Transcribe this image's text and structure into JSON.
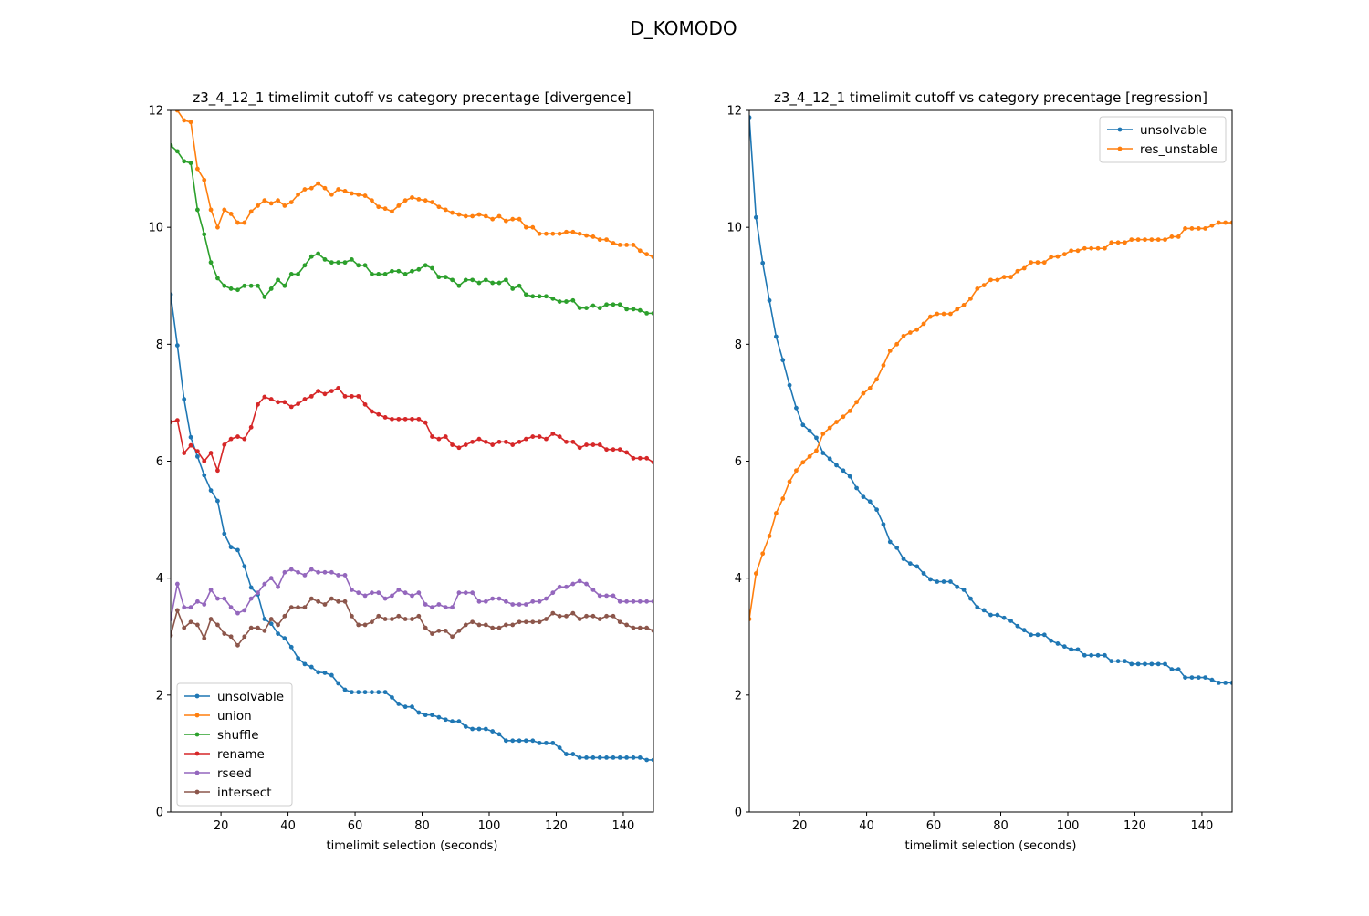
{
  "figure": {
    "suptitle": "D_KOMODO",
    "colors": {
      "unsolvable": "#1f77b4",
      "union": "#ff7f0e",
      "shuffle": "#2ca02c",
      "rename": "#d62728",
      "rseed": "#9467bd",
      "intersect": "#8c564b",
      "res_unstable": "#ff7f0e"
    }
  },
  "chart_data": [
    {
      "type": "line",
      "title": "z3_4_12_1 timelimit cutoff vs category precentage [divergence]",
      "xlabel": "timelimit selection (seconds)",
      "ylabel": "",
      "xlim": [
        5,
        149
      ],
      "ylim": [
        0,
        12
      ],
      "xticks": [
        20,
        40,
        60,
        80,
        100,
        120,
        140
      ],
      "yticks": [
        0,
        2,
        4,
        6,
        8,
        10,
        12
      ],
      "legend": "lower-left",
      "grid": false,
      "marker": "dot",
      "x": {
        "start": 5,
        "step": 2,
        "count": 73
      },
      "series": [
        {
          "name": "unsolvable",
          "color": "#1f77b4",
          "values": [
            8.85,
            7.98,
            7.06,
            6.41,
            6.08,
            5.76,
            5.5,
            5.32,
            4.76,
            4.53,
            4.48,
            4.2,
            3.84,
            3.72,
            3.3,
            3.22,
            3.05,
            2.97,
            2.82,
            2.63,
            2.53,
            2.48,
            2.39,
            2.38,
            2.34,
            2.2,
            2.09,
            2.05,
            2.05,
            2.05,
            2.05,
            2.05,
            2.05,
            1.96,
            1.85,
            1.8,
            1.8,
            1.7,
            1.66,
            1.66,
            1.62,
            1.58,
            1.55,
            1.55,
            1.46,
            1.42,
            1.42,
            1.42,
            1.38,
            1.33,
            1.22,
            1.22,
            1.22,
            1.22,
            1.22,
            1.18,
            1.18,
            1.18,
            1.1,
            0.99,
            0.99,
            0.93,
            0.93,
            0.93,
            0.93,
            0.93,
            0.93,
            0.93,
            0.93,
            0.93,
            0.93,
            0.89,
            0.89
          ]
        },
        {
          "name": "union",
          "color": "#ff7f0e",
          "values": [
            12.35,
            12.0,
            11.83,
            11.8,
            11.0,
            10.81,
            10.3,
            10.0,
            10.3,
            10.23,
            10.08,
            10.08,
            10.27,
            10.37,
            10.46,
            10.41,
            10.46,
            10.37,
            10.43,
            10.56,
            10.65,
            10.67,
            10.75,
            10.67,
            10.56,
            10.65,
            10.62,
            10.58,
            10.56,
            10.54,
            10.46,
            10.35,
            10.32,
            10.27,
            10.37,
            10.46,
            10.51,
            10.48,
            10.46,
            10.43,
            10.35,
            10.3,
            10.25,
            10.22,
            10.19,
            10.19,
            10.22,
            10.19,
            10.14,
            10.19,
            10.11,
            10.14,
            10.14,
            10.0,
            10.0,
            9.89,
            9.89,
            9.89,
            9.89,
            9.92,
            9.92,
            9.89,
            9.86,
            9.84,
            9.79,
            9.79,
            9.73,
            9.7,
            9.7,
            9.7,
            9.6,
            9.54,
            9.49
          ]
        },
        {
          "name": "shuffle",
          "color": "#2ca02c",
          "values": [
            11.4,
            11.3,
            11.13,
            11.1,
            10.3,
            9.88,
            9.4,
            9.13,
            9.0,
            8.95,
            8.93,
            9.0,
            9.0,
            9.0,
            8.81,
            8.95,
            9.1,
            9.0,
            9.2,
            9.2,
            9.35,
            9.5,
            9.55,
            9.45,
            9.4,
            9.4,
            9.4,
            9.45,
            9.35,
            9.35,
            9.2,
            9.2,
            9.2,
            9.25,
            9.25,
            9.2,
            9.25,
            9.28,
            9.35,
            9.3,
            9.15,
            9.15,
            9.1,
            9.0,
            9.1,
            9.1,
            9.05,
            9.1,
            9.05,
            9.05,
            9.1,
            8.95,
            9.0,
            8.85,
            8.82,
            8.82,
            8.82,
            8.78,
            8.73,
            8.73,
            8.75,
            8.62,
            8.62,
            8.66,
            8.62,
            8.68,
            8.68,
            8.68,
            8.6,
            8.6,
            8.58,
            8.53,
            8.53
          ]
        },
        {
          "name": "rename",
          "color": "#d62728",
          "values": [
            6.67,
            6.7,
            6.14,
            6.27,
            6.17,
            6.0,
            6.14,
            5.84,
            6.28,
            6.38,
            6.42,
            6.38,
            6.58,
            6.97,
            7.1,
            7.06,
            7.01,
            7.01,
            6.93,
            6.98,
            7.06,
            7.11,
            7.2,
            7.15,
            7.2,
            7.25,
            7.11,
            7.11,
            7.11,
            6.97,
            6.85,
            6.8,
            6.75,
            6.72,
            6.72,
            6.72,
            6.72,
            6.72,
            6.66,
            6.42,
            6.38,
            6.42,
            6.28,
            6.23,
            6.28,
            6.33,
            6.38,
            6.33,
            6.28,
            6.33,
            6.33,
            6.28,
            6.33,
            6.38,
            6.42,
            6.42,
            6.38,
            6.47,
            6.42,
            6.33,
            6.33,
            6.23,
            6.28,
            6.28,
            6.28,
            6.2,
            6.2,
            6.2,
            6.15,
            6.05,
            6.05,
            6.05,
            5.98
          ]
        },
        {
          "name": "rseed",
          "color": "#9467bd",
          "values": [
            3.3,
            3.9,
            3.5,
            3.5,
            3.6,
            3.55,
            3.8,
            3.65,
            3.65,
            3.5,
            3.4,
            3.45,
            3.65,
            3.75,
            3.9,
            4.0,
            3.85,
            4.1,
            4.15,
            4.1,
            4.05,
            4.15,
            4.1,
            4.1,
            4.1,
            4.05,
            4.05,
            3.8,
            3.75,
            3.7,
            3.75,
            3.75,
            3.65,
            3.7,
            3.8,
            3.75,
            3.7,
            3.75,
            3.55,
            3.5,
            3.55,
            3.5,
            3.5,
            3.75,
            3.75,
            3.75,
            3.6,
            3.6,
            3.65,
            3.65,
            3.6,
            3.55,
            3.55,
            3.55,
            3.6,
            3.6,
            3.65,
            3.75,
            3.85,
            3.85,
            3.9,
            3.95,
            3.9,
            3.8,
            3.7,
            3.7,
            3.7,
            3.6,
            3.6,
            3.6,
            3.6,
            3.6,
            3.6
          ]
        },
        {
          "name": "intersect",
          "color": "#8c564b",
          "values": [
            3.02,
            3.45,
            3.15,
            3.25,
            3.2,
            2.97,
            3.3,
            3.2,
            3.05,
            3.0,
            2.85,
            3.0,
            3.15,
            3.15,
            3.1,
            3.3,
            3.2,
            3.35,
            3.5,
            3.5,
            3.5,
            3.65,
            3.6,
            3.55,
            3.65,
            3.6,
            3.6,
            3.35,
            3.2,
            3.2,
            3.25,
            3.35,
            3.3,
            3.3,
            3.35,
            3.3,
            3.3,
            3.35,
            3.15,
            3.05,
            3.1,
            3.1,
            3.0,
            3.1,
            3.2,
            3.25,
            3.2,
            3.2,
            3.15,
            3.15,
            3.2,
            3.2,
            3.25,
            3.25,
            3.25,
            3.25,
            3.3,
            3.4,
            3.35,
            3.35,
            3.4,
            3.3,
            3.35,
            3.35,
            3.3,
            3.35,
            3.35,
            3.25,
            3.2,
            3.15,
            3.15,
            3.15,
            3.1
          ]
        }
      ]
    },
    {
      "type": "line",
      "title": "z3_4_12_1 timelimit cutoff vs category precentage [regression]",
      "xlabel": "timelimit selection (seconds)",
      "ylabel": "",
      "xlim": [
        5,
        149
      ],
      "ylim": [
        0,
        12
      ],
      "xticks": [
        20,
        40,
        60,
        80,
        100,
        120,
        140
      ],
      "yticks": [
        0,
        2,
        4,
        6,
        8,
        10,
        12
      ],
      "legend": "upper-right",
      "grid": false,
      "marker": "dot",
      "x": {
        "start": 5,
        "step": 2,
        "count": 73
      },
      "series": [
        {
          "name": "unsolvable",
          "color": "#1f77b4",
          "values": [
            11.88,
            10.17,
            9.39,
            8.75,
            8.13,
            7.73,
            7.3,
            6.91,
            6.62,
            6.52,
            6.4,
            6.14,
            6.04,
            5.93,
            5.84,
            5.74,
            5.54,
            5.39,
            5.31,
            5.17,
            4.92,
            4.62,
            4.52,
            4.33,
            4.25,
            4.2,
            4.08,
            3.98,
            3.94,
            3.94,
            3.94,
            3.85,
            3.8,
            3.65,
            3.5,
            3.45,
            3.37,
            3.37,
            3.32,
            3.27,
            3.18,
            3.11,
            3.03,
            3.03,
            3.03,
            2.93,
            2.88,
            2.83,
            2.78,
            2.78,
            2.68,
            2.68,
            2.68,
            2.68,
            2.58,
            2.58,
            2.58,
            2.53,
            2.53,
            2.53,
            2.53,
            2.53,
            2.53,
            2.44,
            2.44,
            2.3,
            2.3,
            2.3,
            2.3,
            2.26,
            2.21,
            2.21,
            2.21
          ]
        },
        {
          "name": "res_unstable",
          "color": "#ff7f0e",
          "values": [
            3.3,
            4.08,
            4.42,
            4.72,
            5.11,
            5.36,
            5.65,
            5.84,
            5.98,
            6.08,
            6.18,
            6.47,
            6.57,
            6.67,
            6.76,
            6.86,
            7.01,
            7.16,
            7.25,
            7.4,
            7.64,
            7.89,
            8.0,
            8.14,
            8.2,
            8.25,
            8.35,
            8.47,
            8.52,
            8.52,
            8.52,
            8.6,
            8.67,
            8.78,
            8.95,
            9.01,
            9.1,
            9.1,
            9.15,
            9.15,
            9.25,
            9.3,
            9.4,
            9.4,
            9.4,
            9.49,
            9.5,
            9.54,
            9.6,
            9.6,
            9.64,
            9.64,
            9.64,
            9.64,
            9.74,
            9.74,
            9.74,
            9.79,
            9.79,
            9.79,
            9.79,
            9.79,
            9.79,
            9.84,
            9.84,
            9.98,
            9.98,
            9.98,
            9.98,
            10.03,
            10.08,
            10.08,
            10.08
          ]
        }
      ]
    }
  ]
}
